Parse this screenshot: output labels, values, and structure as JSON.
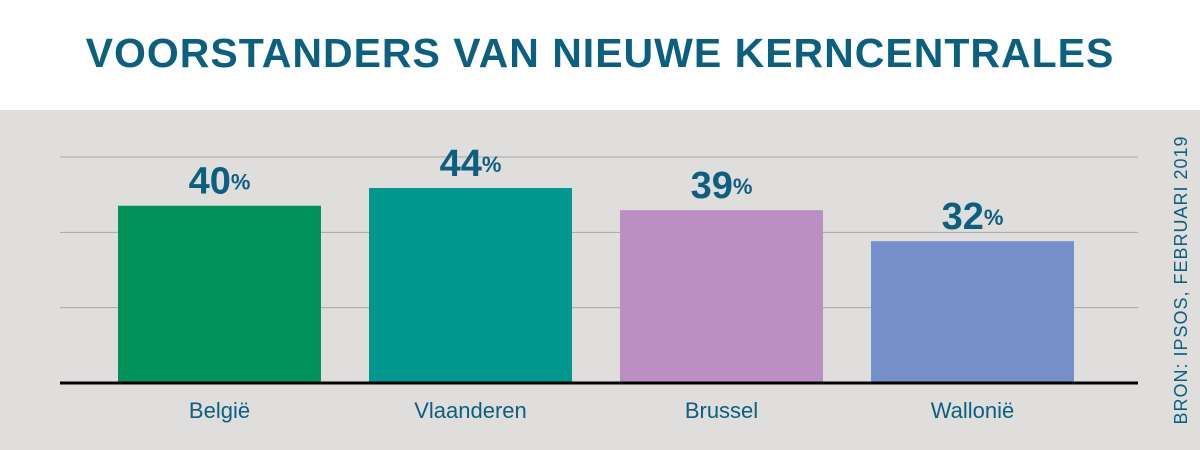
{
  "chart_data": {
    "type": "bar",
    "title": "VOORSTANDERS VAN NIEUWE KERNCENTRALES",
    "source": "BRON: IPSOS, FEBRUARI 2019",
    "categories": [
      "België",
      "Vlaanderen",
      "Brussel",
      "Wallonië"
    ],
    "values": [
      40,
      44,
      39,
      32
    ],
    "value_labels": [
      "40%",
      "44%",
      "39%",
      "32%"
    ],
    "colors": [
      "#009258",
      "#00978e",
      "#bb8fc2",
      "#758fca"
    ],
    "ylim": [
      0,
      51
    ],
    "yticks": [
      0,
      17,
      34,
      51
    ],
    "grid": true
  }
}
